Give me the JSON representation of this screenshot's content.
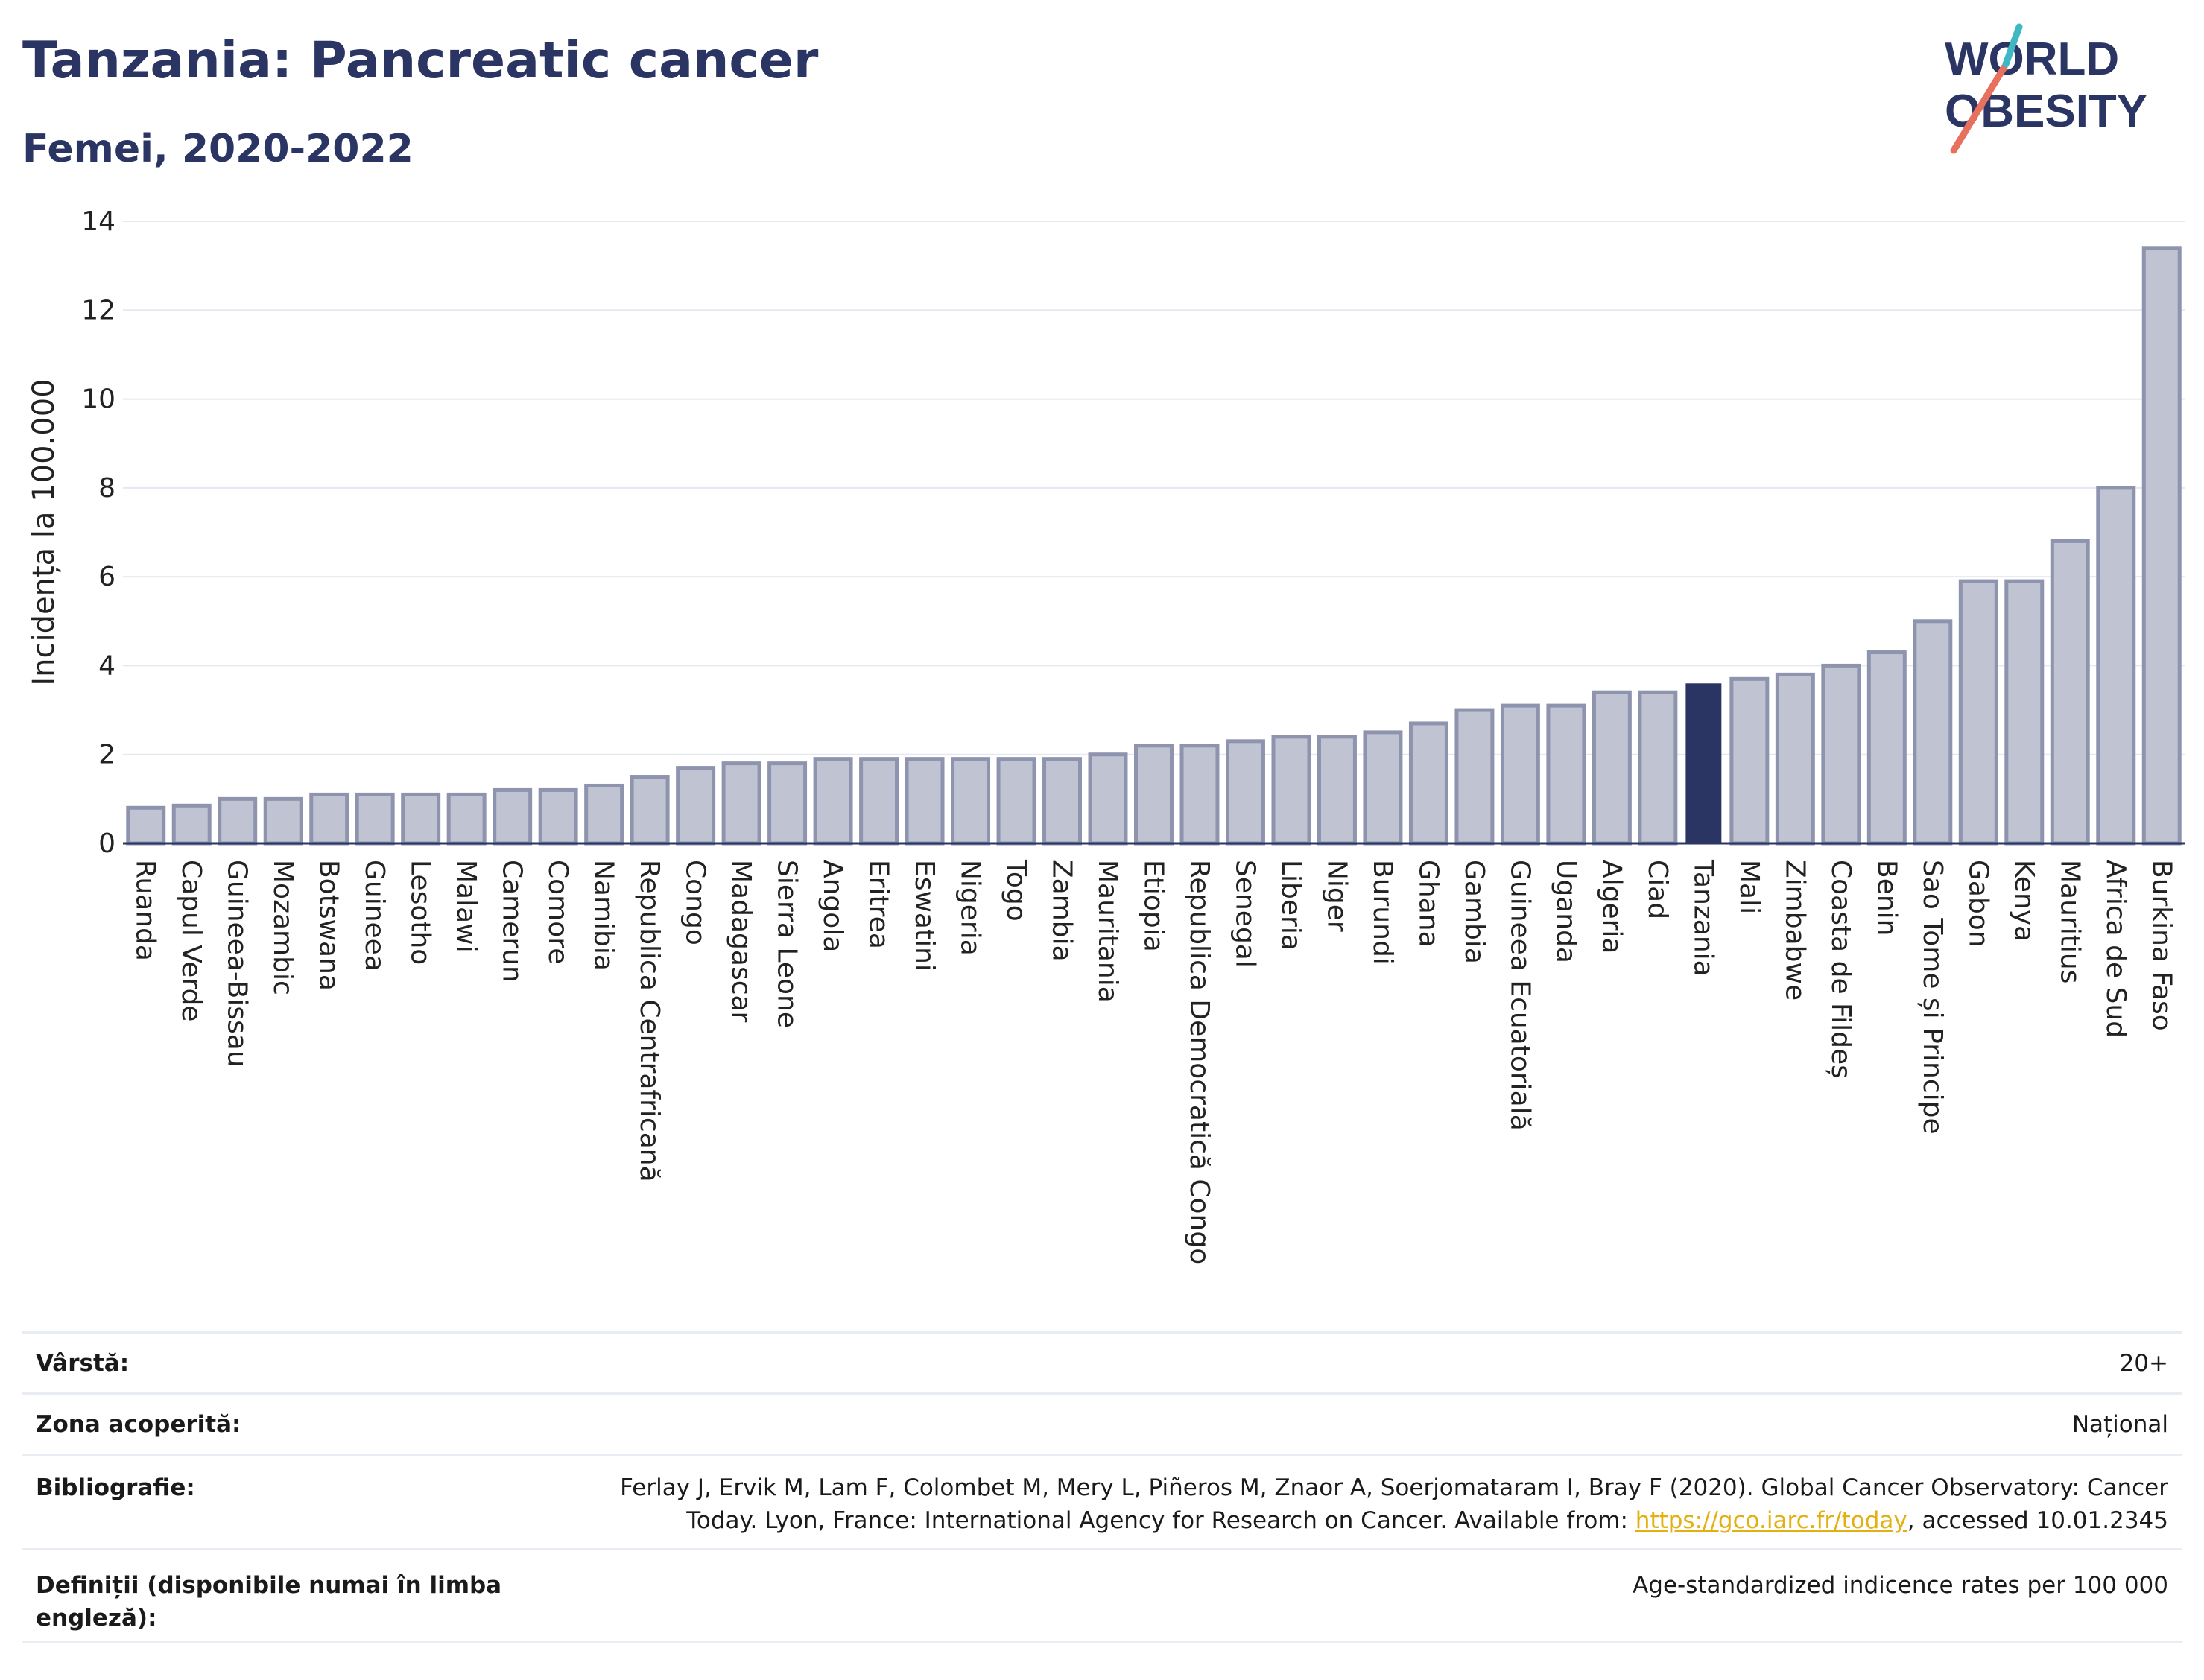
{
  "header": {
    "title": "Tanzania: Pancreatic cancer",
    "subtitle": "Femei, 2020-2022"
  },
  "logo": {
    "line1": "WORLD",
    "line2": "OBESITY",
    "colors": {
      "text": "#2b3563",
      "slash_orange": "#e8705f",
      "slash_teal": "#3fb8c4"
    }
  },
  "colors": {
    "bar_fill": "#bfc3d2",
    "bar_stroke": "#8e94ae",
    "highlight_fill": "#2b3563",
    "grid": "#e5e8ef",
    "axis": "#2b3563"
  },
  "chart_data": {
    "type": "bar",
    "ylabel": "Incidența la 100.000",
    "ylim": [
      0,
      14
    ],
    "yticks": [
      0,
      2,
      4,
      6,
      8,
      10,
      12,
      14
    ],
    "grid": true,
    "highlight": "Tanzania",
    "categories": [
      "Ruanda",
      "Capul Verde",
      "Guineea-Bissau",
      "Mozambic",
      "Botswana",
      "Guineea",
      "Lesotho",
      "Malawi",
      "Camerun",
      "Comore",
      "Namibia",
      "Republica Centrafricană",
      "Congo",
      "Madagascar",
      "Sierra Leone",
      "Angola",
      "Eritrea",
      "Eswatini",
      "Nigeria",
      "Togo",
      "Zambia",
      "Mauritania",
      "Etiopia",
      "Republica Democratică Congo",
      "Senegal",
      "Liberia",
      "Niger",
      "Burundi",
      "Ghana",
      "Gambia",
      "Guineea Ecuatorială",
      "Uganda",
      "Algeria",
      "Ciad",
      "Tanzania",
      "Mali",
      "Zimbabwe",
      "Coasta de Fildeș",
      "Benin",
      "Sao Tome și Principe",
      "Gabon",
      "Kenya",
      "Mauritius",
      "Africa de Sud",
      "Burkina Faso"
    ],
    "values": [
      0.8,
      0.85,
      1.0,
      1.0,
      1.1,
      1.1,
      1.1,
      1.1,
      1.2,
      1.2,
      1.3,
      1.5,
      1.7,
      1.8,
      1.8,
      1.9,
      1.9,
      1.9,
      1.9,
      1.9,
      1.9,
      2.0,
      2.2,
      2.2,
      2.3,
      2.4,
      2.4,
      2.5,
      2.7,
      3.0,
      3.1,
      3.1,
      3.4,
      3.4,
      3.6,
      3.7,
      3.8,
      4.0,
      4.3,
      5.0,
      5.9,
      5.9,
      6.8,
      8.0,
      13.4
    ]
  },
  "meta": {
    "age_label": "Vârstă:",
    "age_value": "20+",
    "coverage_label": "Zona acoperită:",
    "coverage_value": "Național",
    "biblio_label": "Bibliografie:",
    "biblio_line1": "Ferlay J, Ervik M, Lam F, Colombet M, Mery L, Piñeros M, Znaor A, Soerjomataram I, Bray F (2020). Global Cancer Observatory: Cancer",
    "biblio_line2_pre": "Today. Lyon, France: International Agency for Research on Cancer. Available from: ",
    "biblio_link": "https://gco.iarc.fr/today",
    "biblio_line2_post": ", accessed 10.01.2345",
    "def_label": "Definiții (disponibile numai în limba engleză):",
    "def_value": "Age-standardized indicence rates per 100 000"
  }
}
